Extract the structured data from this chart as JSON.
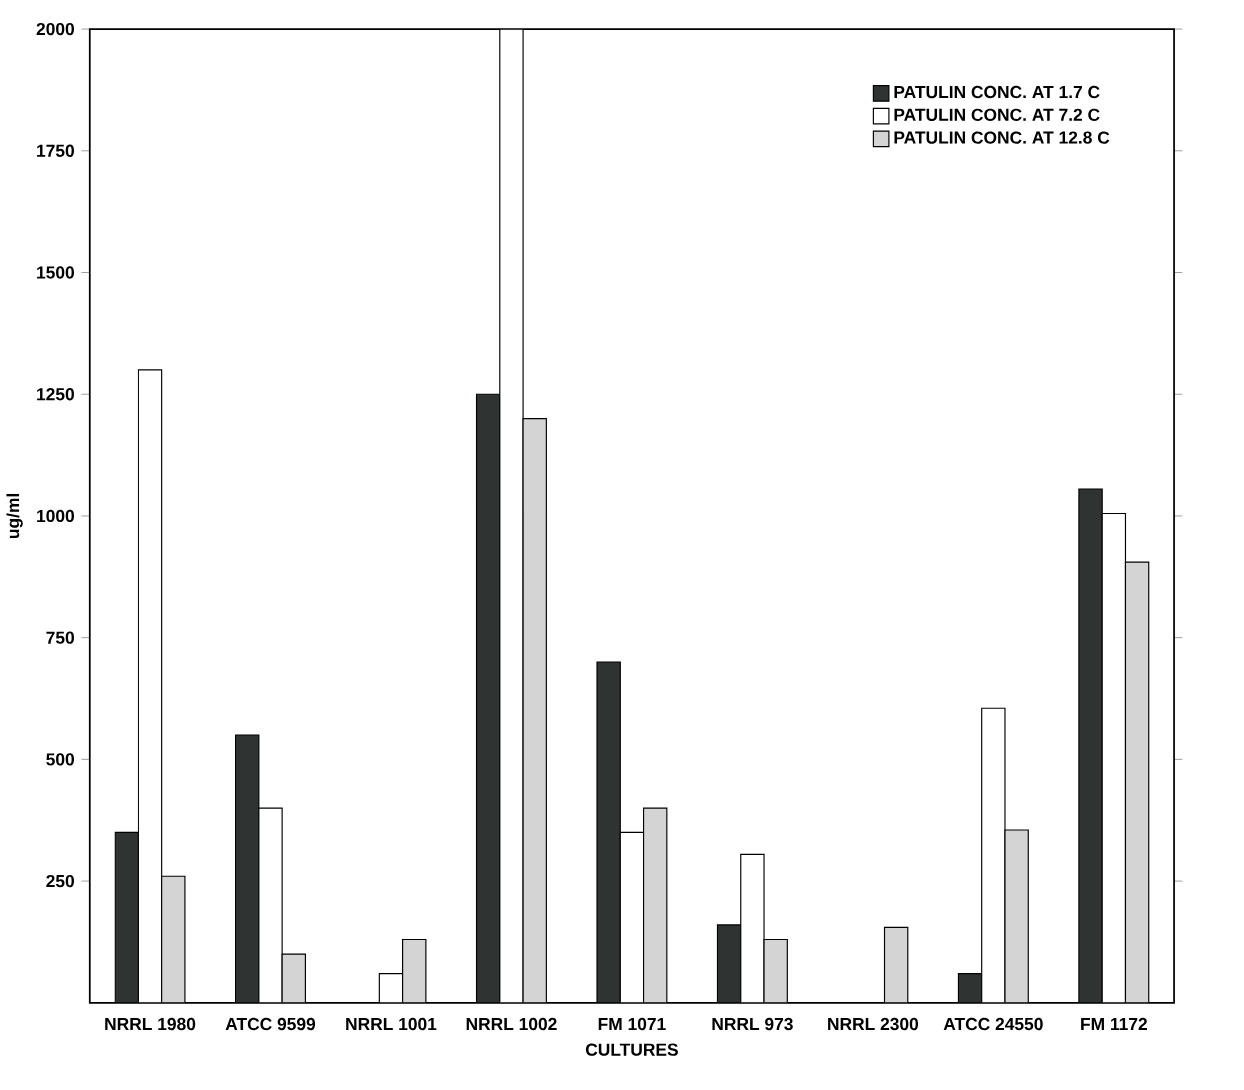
{
  "chart_data": {
    "type": "bar",
    "xlabel": "CULTURES",
    "ylabel": "ug/ml",
    "categories": [
      "NRRL 1980",
      "ATCC 9599",
      "NRRL 1001",
      "NRRL 1002",
      "FM 1071",
      "NRRL 973",
      "NRRL 2300",
      "ATCC 24550",
      "FM 1172"
    ],
    "series": [
      {
        "name": "PATULIN CONC. AT 1.7 C",
        "color": "#2f3432",
        "values": [
          350,
          550,
          null,
          1250,
          700,
          160,
          null,
          60,
          1055
        ]
      },
      {
        "name": "PATULIN CONC. AT 7.2 C",
        "color": "#ffffff",
        "values": [
          1300,
          400,
          60,
          2000,
          350,
          305,
          null,
          605,
          1005
        ]
      },
      {
        "name": "PATULIN CONC. AT 12.8 C",
        "color": "#d4d4d4",
        "values": [
          260,
          100,
          130,
          1200,
          400,
          130,
          155,
          355,
          905
        ]
      }
    ],
    "ylim": [
      0,
      2000
    ],
    "yticks": [
      250,
      500,
      750,
      1000,
      1250,
      1500,
      1750,
      2000
    ],
    "grid": false,
    "legend": "top right"
  }
}
